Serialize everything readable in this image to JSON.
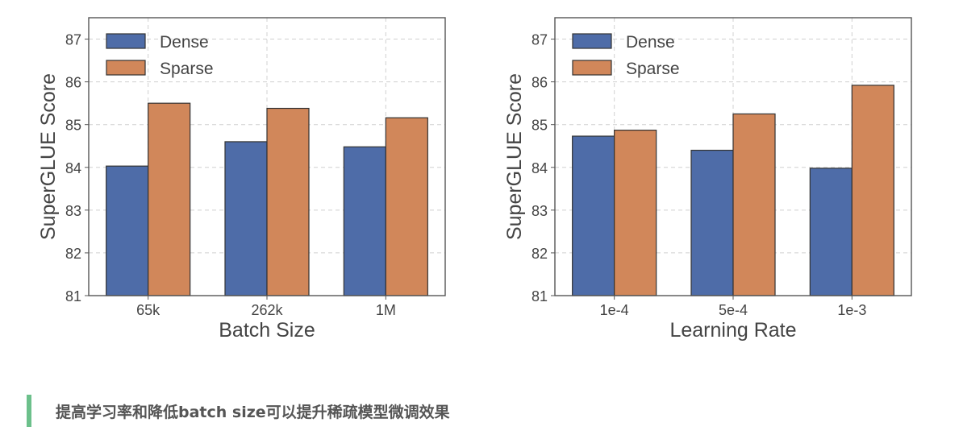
{
  "chart_data": [
    {
      "type": "bar",
      "categories": [
        "65k",
        "262k",
        "1M"
      ],
      "series": [
        {
          "name": "Dense",
          "values": [
            84.03,
            84.6,
            84.48
          ]
        },
        {
          "name": "Sparse",
          "values": [
            85.5,
            85.38,
            85.16
          ]
        }
      ],
      "title": "",
      "xlabel": "Batch Size",
      "ylabel": "SuperGLUE Score",
      "ylim": [
        81,
        87.5
      ],
      "yticks": [
        81,
        82,
        83,
        84,
        85,
        86,
        87
      ],
      "grid": true,
      "legend_position": "top-left"
    },
    {
      "type": "bar",
      "categories": [
        "1e-4",
        "5e-4",
        "1e-3"
      ],
      "series": [
        {
          "name": "Dense",
          "values": [
            84.73,
            84.4,
            83.98
          ]
        },
        {
          "name": "Sparse",
          "values": [
            84.87,
            85.25,
            85.92
          ]
        }
      ],
      "title": "",
      "xlabel": "Learning Rate",
      "ylabel": "SuperGLUE Score",
      "ylim": [
        81,
        87.5
      ],
      "yticks": [
        81,
        82,
        83,
        84,
        85,
        86,
        87
      ],
      "grid": true,
      "legend_position": "top-left"
    }
  ],
  "colors": {
    "dense": "#4e6ca8",
    "sparse": "#d1875a",
    "caption_accent": "#6cc08b"
  },
  "caption": {
    "text": "提高学习率和降低batch size可以提升稀疏模型微调效果"
  }
}
